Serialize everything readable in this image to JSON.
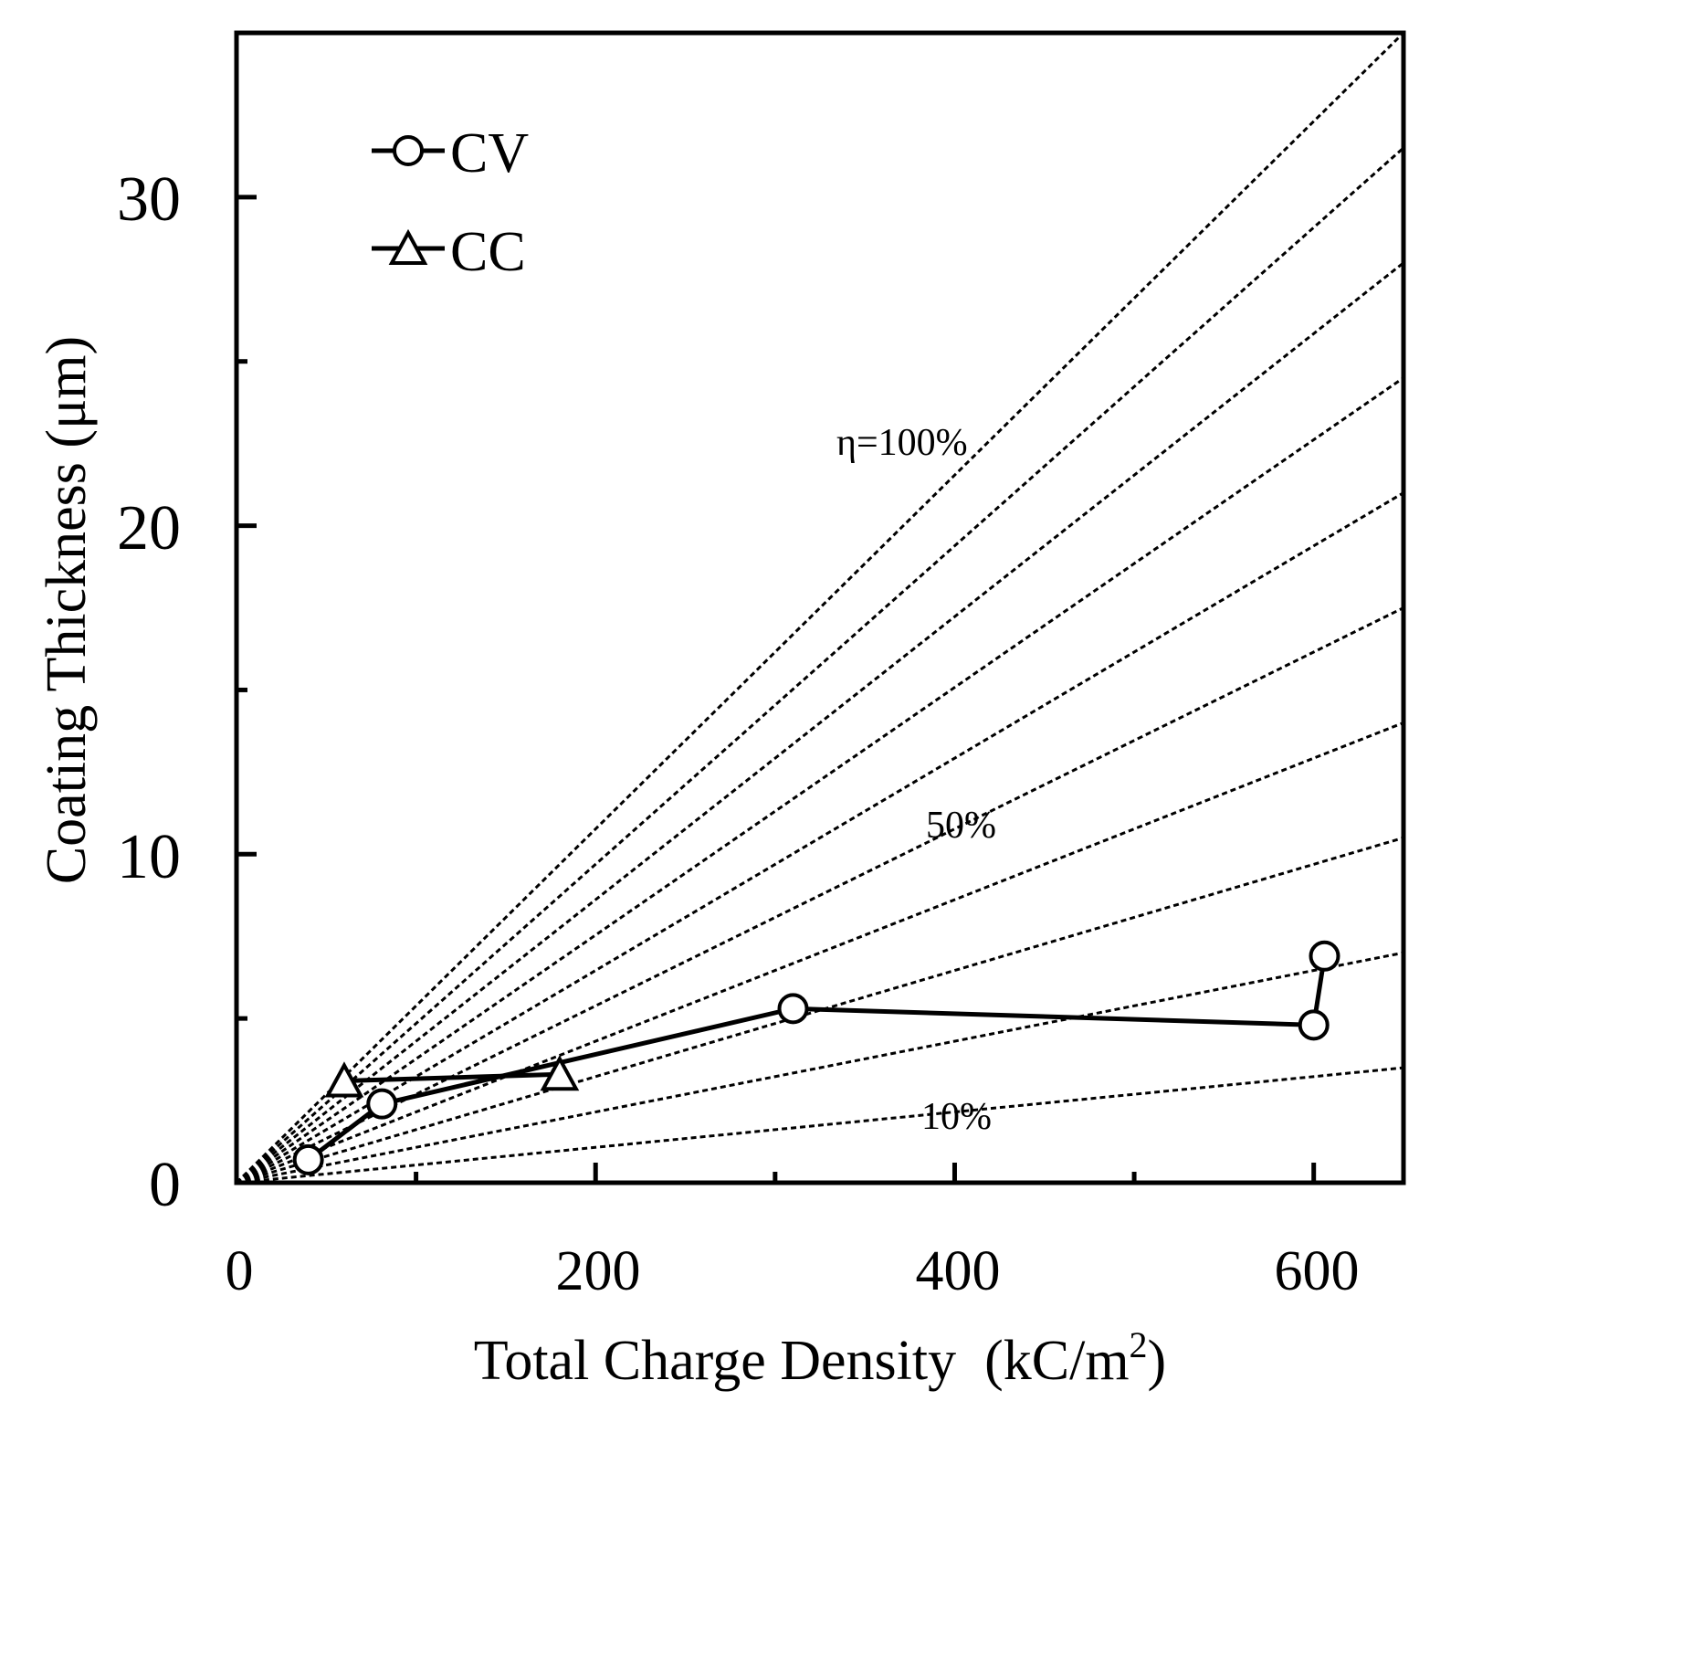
{
  "chart_data": {
    "type": "scatter",
    "title": "",
    "xlabel": "Total Charge Density",
    "xlabel_unit_prefix": "(kC/m",
    "xlabel_unit_sup": "2",
    "xlabel_unit_suffix": ")",
    "ylabel": "Coating Thickness (μm)",
    "xlim": [
      0,
      650
    ],
    "ylim": [
      0,
      35
    ],
    "x_major_ticks": [
      0,
      200,
      400,
      600
    ],
    "x_major_tick_labels": [
      "0",
      "200",
      "400",
      "600"
    ],
    "x_minor_ticks": [
      100,
      300,
      500
    ],
    "y_major_ticks": [
      0,
      10,
      20,
      30
    ],
    "y_major_tick_labels": [
      "0",
      "10",
      "20",
      "30"
    ],
    "y_minor_ticks": [
      5,
      15,
      25
    ],
    "grid": false,
    "legend_position": "top-left",
    "series": [
      {
        "name": "CV",
        "marker": "circle",
        "x": [
          40,
          81,
          310,
          600,
          606
        ],
        "y": [
          0.7,
          2.4,
          5.3,
          4.8,
          6.9
        ]
      },
      {
        "name": "CC",
        "marker": "triangle",
        "x": [
          60,
          180
        ],
        "y": [
          3.1,
          3.3
        ]
      }
    ],
    "reference_lines": {
      "style": "dashed",
      "efficiency_percent": [
        10,
        20,
        30,
        40,
        50,
        60,
        70,
        80,
        90,
        100
      ],
      "y_at_x_650": [
        3.5,
        7.0,
        10.5,
        14.0,
        17.5,
        21.0,
        24.5,
        28.0,
        31.5,
        35.0
      ]
    },
    "annotations": [
      {
        "text": "η=100%",
        "x": 500,
        "y": 22.7
      },
      {
        "text": "50%",
        "x": 525,
        "y": 11.0
      },
      {
        "text": "10%",
        "x": 525,
        "y": 2.1
      }
    ]
  }
}
